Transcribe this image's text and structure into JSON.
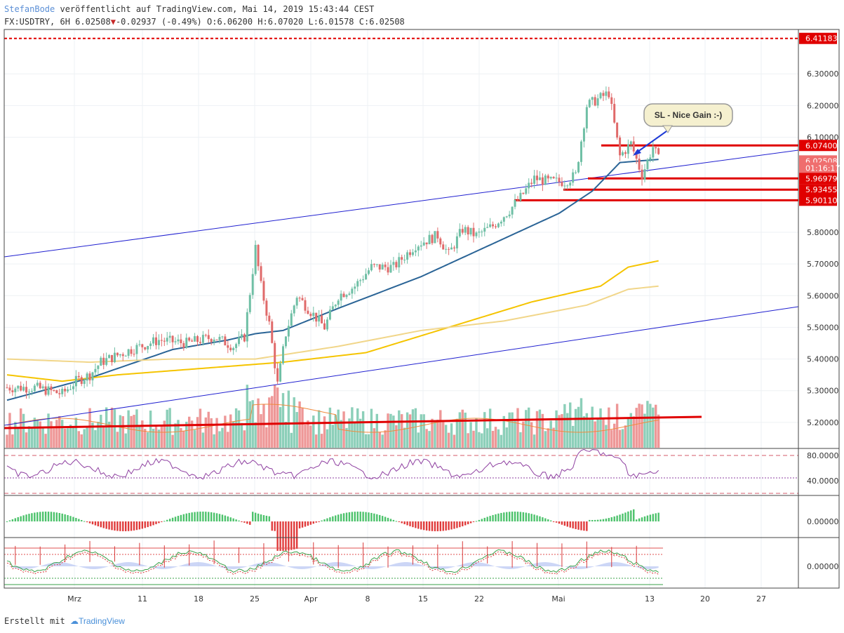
{
  "header": {
    "author": "StefanBode",
    "published": "veröffentlicht auf TradingView.com, Mai 14, 2019 15:43:44 CEST",
    "line2_prefix": "FX:USDTRY, 6H 6.02508",
    "change": "-0.02937 (-0.49%)",
    "ohlc": "O:6.06200 H:6.07020 L:6.01578 C:6.02508"
  },
  "footer": {
    "created_with": "Erstellt mit",
    "brand": "TradingView"
  },
  "annotation": {
    "text": "SL - Nice Gain :-)"
  },
  "colors": {
    "up": "#6fbfa5",
    "down": "#e06a6a",
    "level": "#e00000",
    "trend": "#2020d0",
    "ma_blue": "#2a6496",
    "ma_yellow": "#f5c400",
    "ma_lightyellow": "#f1d68a",
    "rsi": "#8e3fa0"
  },
  "chart_data": {
    "type": "candlestick",
    "symbol": "FX:USDTRY",
    "interval": "6H",
    "ylim": [
      5.12,
      6.44
    ],
    "x_ticks": [
      "Mrz",
      "11",
      "18",
      "25",
      "Apr",
      "8",
      "15",
      "22",
      "Mai",
      "13",
      "20",
      "27"
    ],
    "y_ticks": [
      "6.30000",
      "6.20000",
      "6.10000",
      "5.80000",
      "5.70000",
      "5.60000",
      "5.50000",
      "5.40000",
      "5.30000",
      "5.20000"
    ],
    "price_labels": [
      {
        "label": "6.41183",
        "value": 6.41183,
        "style": "level"
      },
      {
        "label": "6.07400",
        "value": 6.074,
        "style": "level"
      },
      {
        "label": "6.02508",
        "value": 6.02508,
        "style": "last"
      },
      {
        "label": "01:16:17",
        "value": 6.0025,
        "style": "countdown"
      },
      {
        "label": "5.96979",
        "value": 5.96979,
        "style": "level"
      },
      {
        "label": "5.93455",
        "value": 5.93455,
        "style": "level"
      },
      {
        "label": "5.90110",
        "value": 5.9011,
        "style": "level"
      }
    ],
    "levels": [
      6.41183,
      6.074,
      5.96979,
      5.93455,
      5.9011
    ],
    "close_anchors": [
      [
        0,
        5.31
      ],
      [
        10,
        5.31
      ],
      [
        20,
        5.29
      ],
      [
        25,
        5.33
      ],
      [
        30,
        5.35
      ],
      [
        34,
        5.39
      ],
      [
        45,
        5.43
      ],
      [
        55,
        5.46
      ],
      [
        65,
        5.45
      ],
      [
        75,
        5.47
      ],
      [
        82,
        5.44
      ],
      [
        86,
        5.47
      ],
      [
        90,
        5.75
      ],
      [
        92,
        5.63
      ],
      [
        95,
        5.51
      ],
      [
        98,
        5.32
      ],
      [
        101,
        5.48
      ],
      [
        105,
        5.6
      ],
      [
        110,
        5.55
      ],
      [
        115,
        5.5
      ],
      [
        120,
        5.6
      ],
      [
        126,
        5.63
      ],
      [
        132,
        5.69
      ],
      [
        140,
        5.69
      ],
      [
        148,
        5.76
      ],
      [
        156,
        5.79
      ],
      [
        160,
        5.73
      ],
      [
        165,
        5.81
      ],
      [
        170,
        5.79
      ],
      [
        176,
        5.82
      ],
      [
        182,
        5.87
      ],
      [
        186,
        5.91
      ],
      [
        191,
        5.97
      ],
      [
        196,
        5.96
      ],
      [
        202,
        5.96
      ],
      [
        206,
        5.98
      ],
      [
        210,
        6.2
      ],
      [
        214,
        6.22
      ],
      [
        218,
        6.24
      ],
      [
        222,
        6.04
      ],
      [
        226,
        6.08
      ],
      [
        230,
        5.98
      ],
      [
        234,
        6.07
      ],
      [
        236,
        6.03
      ]
    ],
    "moving_averages": [
      {
        "name": "",
        "color": "#2a6496",
        "points": [
          [
            0,
            5.27
          ],
          [
            30,
            5.34
          ],
          [
            60,
            5.43
          ],
          [
            80,
            5.46
          ],
          [
            90,
            5.48
          ],
          [
            100,
            5.49
          ],
          [
            120,
            5.56
          ],
          [
            150,
            5.66
          ],
          [
            180,
            5.78
          ],
          [
            200,
            5.86
          ],
          [
            212,
            5.93
          ],
          [
            222,
            6.02
          ],
          [
            236,
            6.03
          ]
        ]
      },
      {
        "name": "",
        "color": "#f5c400",
        "points": [
          [
            0,
            5.35
          ],
          [
            20,
            5.33
          ],
          [
            40,
            5.35
          ],
          [
            70,
            5.37
          ],
          [
            100,
            5.39
          ],
          [
            130,
            5.42
          ],
          [
            160,
            5.5
          ],
          [
            190,
            5.58
          ],
          [
            215,
            5.63
          ],
          [
            225,
            5.69
          ],
          [
            236,
            5.71
          ]
        ]
      },
      {
        "name": "",
        "color": "#f1d68a",
        "points": [
          [
            0,
            5.4
          ],
          [
            30,
            5.39
          ],
          [
            60,
            5.4
          ],
          [
            90,
            5.4
          ],
          [
            120,
            5.44
          ],
          [
            150,
            5.49
          ],
          [
            180,
            5.52
          ],
          [
            210,
            5.57
          ],
          [
            225,
            5.62
          ],
          [
            236,
            5.63
          ]
        ]
      }
    ],
    "rsi_levels": [
      "80.0000",
      "40.0000"
    ],
    "macd_label": "0.00000",
    "stoch_label": "0.00000"
  }
}
